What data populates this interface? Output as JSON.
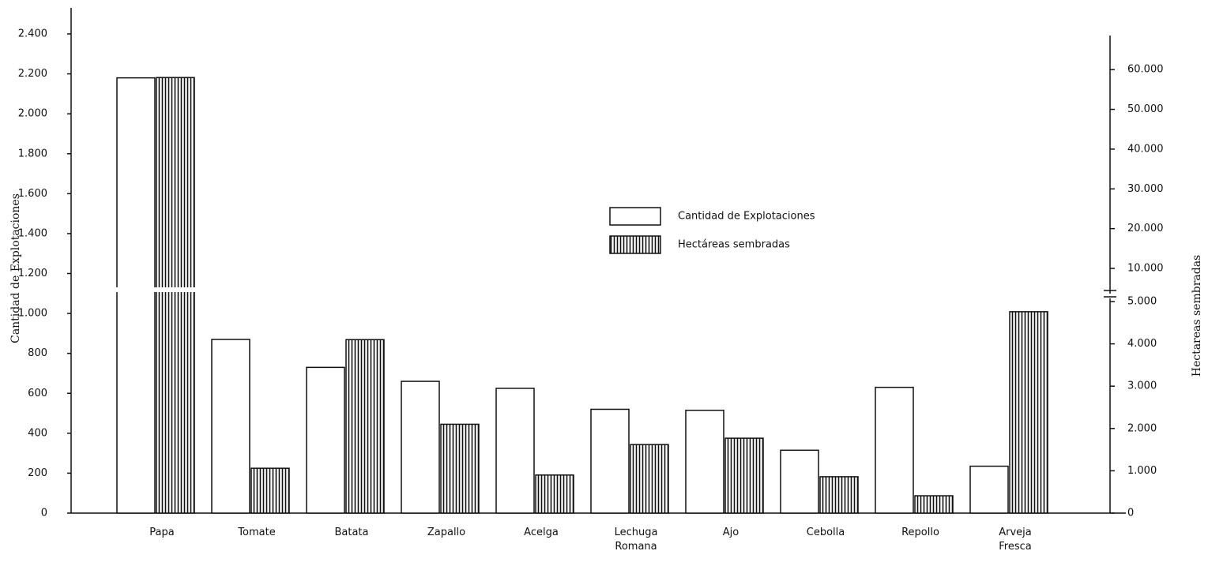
{
  "chart_data": {
    "type": "bar",
    "y_label": "Cantidad de Explotaciones",
    "y2_label": "Hectareas sembradas",
    "categories": [
      "Papa",
      "Tomate",
      "Batata",
      "Zapallo",
      "Acelga",
      "Lechuga Romana",
      "Ajo",
      "Cebolla",
      "Repollo",
      "Arveja Fresca"
    ],
    "series": [
      {
        "name": "Cantidad de Explotaciones",
        "color": "#ffffff",
        "values": [
          2180,
          870,
          730,
          660,
          625,
          520,
          515,
          315,
          630,
          235
        ]
      },
      {
        "name": "Hectáreas sembradas",
        "color": "#1a1a1a",
        "hatch": true,
        "axis": "y2",
        "values": [
          58000,
          1060,
          4100,
          2100,
          900,
          1620,
          1770,
          860,
          410,
          4760
        ]
      }
    ],
    "ylim": [
      0,
      2400
    ],
    "yticks": [
      0,
      200,
      400,
      600,
      800,
      {
        "value": 1000,
        "label": "1.000"
      },
      {
        "value": 1200,
        "label": "1.200"
      },
      {
        "value": 1400,
        "label": "1.400"
      },
      {
        "value": 1600,
        "label": "1.600"
      },
      {
        "value": 1800,
        "label": "1.800"
      },
      {
        "value": 2000,
        "label": "2.000"
      },
      {
        "value": 2200,
        "label": "2.200"
      },
      {
        "value": 2400,
        "label": "2.400"
      }
    ],
    "y2lim": [
      0,
      65000
    ],
    "y2break": [
      5000,
      10000
    ],
    "y2ticks": [
      0,
      {
        "value": 1000,
        "label": "1.000"
      },
      {
        "value": 2000,
        "label": "2.000"
      },
      {
        "value": 3000,
        "label": "3.000"
      },
      {
        "value": 4000,
        "label": "4.000"
      },
      {
        "value": 5000,
        "label": "5.000"
      },
      {
        "value": 10000,
        "label": "10.000"
      },
      {
        "value": 20000,
        "label": "20.000"
      },
      {
        "value": 30000,
        "label": "30.000"
      },
      {
        "value": 40000,
        "label": "40.000"
      },
      {
        "value": 50000,
        "label": "50.000"
      },
      {
        "value": 60000,
        "label": "60.000"
      }
    ],
    "legend_position": "center"
  }
}
